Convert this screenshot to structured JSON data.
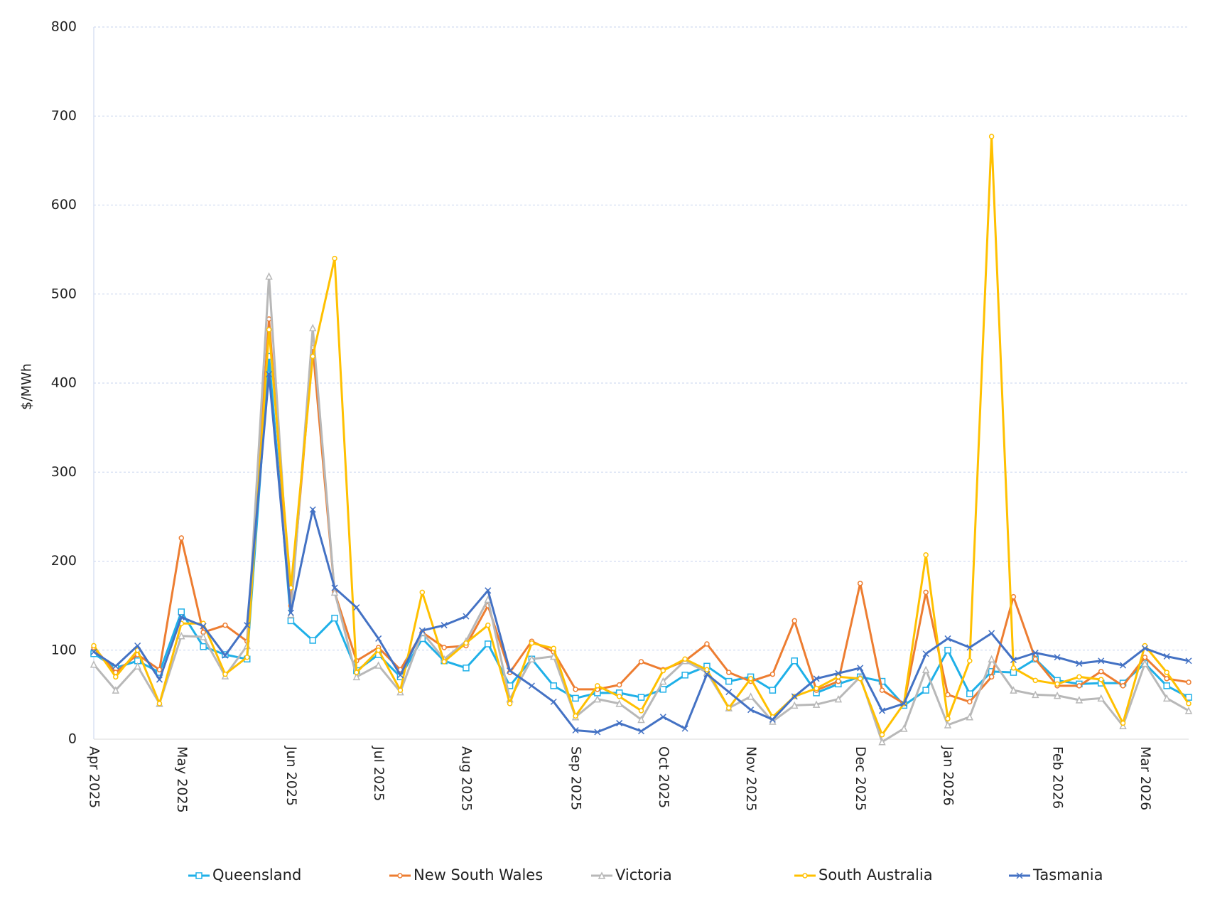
{
  "chart_data": {
    "type": "line",
    "y_label": "$/MWh",
    "categories": [
      "Apr 2025",
      null,
      null,
      null,
      "May 2025",
      null,
      null,
      null,
      null,
      "Jun 2025",
      null,
      null,
      null,
      "Jul 2025",
      null,
      null,
      null,
      "Aug 2025",
      null,
      null,
      null,
      null,
      "Sep 2025",
      null,
      null,
      null,
      "Oct 2025",
      null,
      null,
      null,
      "Nov 2025",
      null,
      null,
      null,
      null,
      "Dec 2025",
      null,
      null,
      null,
      "Jan 2026",
      null,
      null,
      null,
      null,
      "Feb 2026",
      null,
      null,
      null,
      "Mar 2026",
      null,
      null
    ],
    "series": [
      {
        "name": "Queensland",
        "color": "#1fb0e8",
        "marker": "square",
        "values": [
          96,
          80,
          88,
          75,
          143,
          104,
          95,
          90,
          430,
          133,
          111,
          136,
          77,
          95,
          70,
          113,
          88,
          80,
          107,
          60,
          90,
          60,
          46,
          52,
          52,
          47,
          56,
          72,
          82,
          65,
          70,
          55,
          88,
          52,
          62,
          70,
          65,
          38,
          55,
          100,
          51,
          76,
          75,
          90,
          66,
          62,
          63,
          63,
          85,
          60,
          47
        ]
      },
      {
        "name": "New South Wales",
        "color": "#ed7d31",
        "marker": "circle",
        "values": [
          103,
          75,
          95,
          78,
          226,
          120,
          128,
          110,
          472,
          150,
          440,
          165,
          88,
          103,
          78,
          120,
          103,
          105,
          150,
          75,
          110,
          98,
          56,
          56,
          61,
          87,
          78,
          88,
          107,
          75,
          65,
          73,
          133,
          55,
          65,
          175,
          55,
          40,
          165,
          50,
          42,
          70,
          160,
          90,
          60,
          60,
          76,
          60,
          92,
          68,
          64
        ]
      },
      {
        "name": "Victoria",
        "color": "#b8b8b8",
        "marker": "triangle",
        "values": [
          84,
          55,
          82,
          40,
          116,
          115,
          71,
          105,
          520,
          140,
          462,
          165,
          70,
          83,
          53,
          120,
          90,
          110,
          157,
          45,
          90,
          93,
          25,
          45,
          40,
          22,
          65,
          88,
          75,
          35,
          48,
          20,
          38,
          39,
          45,
          70,
          -3,
          12,
          78,
          16,
          25,
          90,
          55,
          50,
          49,
          44,
          46,
          15,
          85,
          46,
          32
        ]
      },
      {
        "name": "South Australia",
        "color": "#ffc000",
        "marker": "circle",
        "values": [
          105,
          70,
          100,
          40,
          130,
          130,
          73,
          92,
          460,
          170,
          430,
          540,
          75,
          100,
          55,
          165,
          87,
          108,
          128,
          40,
          108,
          102,
          26,
          60,
          48,
          32,
          77,
          90,
          78,
          35,
          68,
          25,
          48,
          57,
          70,
          68,
          5,
          40,
          207,
          23,
          88,
          677,
          80,
          66,
          62,
          70,
          67,
          18,
          105,
          75,
          40
        ]
      },
      {
        "name": "Tasmania",
        "color": "#4472c4",
        "marker": "cross",
        "values": [
          98,
          82,
          105,
          67,
          137,
          127,
          94,
          128,
          410,
          142,
          258,
          170,
          148,
          113,
          72,
          122,
          128,
          138,
          167,
          77,
          60,
          42,
          10,
          8,
          18,
          9,
          25,
          12,
          73,
          53,
          33,
          22,
          48,
          68,
          74,
          80,
          32,
          40,
          96,
          113,
          103,
          119,
          89,
          97,
          92,
          85,
          88,
          83,
          102,
          93,
          88
        ]
      }
    ],
    "ylim": [
      0,
      800
    ],
    "yticks": [
      0,
      100,
      200,
      300,
      400,
      500,
      600,
      700,
      800
    ],
    "grid": true,
    "legend": "bottom"
  }
}
